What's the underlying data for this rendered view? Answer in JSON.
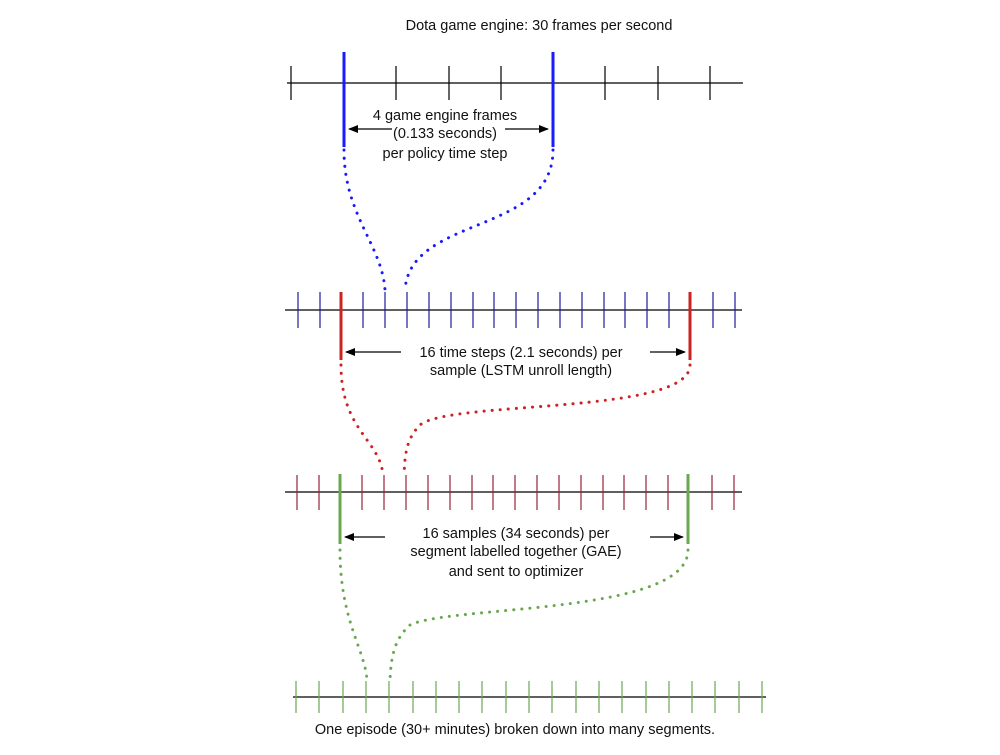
{
  "title": "Dota game engine: 30 frames per second",
  "levels": [
    {
      "id": "frames",
      "label_lines": [
        "4 game engine frames",
        "(0.133 seconds)",
        "per policy time step"
      ],
      "tick_color": "#000000",
      "highlight_color": "#1a1aff"
    },
    {
      "id": "time-steps",
      "label_lines": [
        "16 time steps (2.1 seconds) per",
        "sample (LSTM unroll length)"
      ],
      "tick_color": "#1a1a99",
      "highlight_color": "#cc2222"
    },
    {
      "id": "samples",
      "label_lines": [
        "16 samples (34 seconds) per",
        "segment labelled together (GAE)",
        "and sent to optimizer"
      ],
      "tick_color": "#992233",
      "highlight_color": "#6aa84f"
    },
    {
      "id": "segments",
      "label_lines": [],
      "tick_color": "#6aa84f",
      "highlight_color": "#6aa84f"
    }
  ],
  "caption": "One episode (30+ minutes) broken down into many segments."
}
